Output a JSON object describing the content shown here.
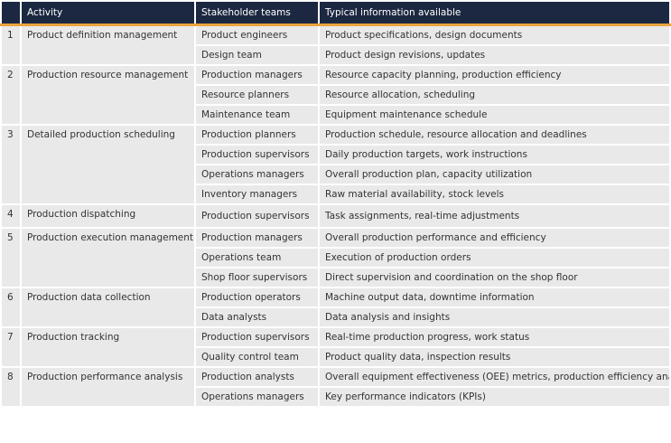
{
  "header": {
    "columns": [
      "Activity",
      "Stakeholder teams",
      "Typical information available"
    ]
  },
  "groups": [
    {
      "number": 1,
      "activity": "Product definition management",
      "rows": [
        {
          "team": "Product engineers",
          "info": "Product specifications, design documents"
        },
        {
          "team": "Design team",
          "info": "Product design revisions, updates"
        }
      ]
    },
    {
      "number": 2,
      "activity": "Production resource management",
      "rows": [
        {
          "team": "Production managers",
          "info": "Resource capacity planning, production efficiency"
        },
        {
          "team": "Resource planners",
          "info": "Resource allocation, scheduling"
        },
        {
          "team": "Maintenance team",
          "info": "Equipment maintenance schedule"
        }
      ]
    },
    {
      "number": 3,
      "activity": "Detailed production scheduling",
      "rows": [
        {
          "team": "Production planners",
          "info": "Production schedule, resource allocation and deadlines"
        },
        {
          "team": "Production supervisors",
          "info": "Daily production targets, work instructions"
        },
        {
          "team": "Operations managers",
          "info": "Overall production plan, capacity utilization"
        },
        {
          "team": "Inventory managers",
          "info": "Raw material availability, stock levels"
        }
      ]
    },
    {
      "number": 4,
      "activity": "Production dispatching",
      "rows": [
        {
          "team": "Production supervisors",
          "info": "Task assignments, real-time adjustments"
        }
      ]
    },
    {
      "number": 5,
      "activity": "Production execution management",
      "rows": [
        {
          "team": "Production managers",
          "info": "Overall production performance and efficiency"
        },
        {
          "team": "Operations team",
          "info": "Execution of production orders"
        },
        {
          "team": "Shop floor supervisors",
          "info": "Direct supervision and coordination on the shop floor"
        }
      ]
    },
    {
      "number": 6,
      "activity": "Production data collection",
      "rows": [
        {
          "team": "Production operators",
          "info": "Machine output data, downtime information"
        },
        {
          "team": "Data analysts",
          "info": "Data analysis and insights"
        }
      ]
    },
    {
      "number": 7,
      "activity": "Production tracking",
      "rows": [
        {
          "team": "Production supervisors",
          "info": "Real-time production progress, work status"
        },
        {
          "team": "Quality control team",
          "info": "Product quality data, inspection results"
        }
      ]
    },
    {
      "number": 8,
      "activity": "Production performance analysis",
      "rows": [
        {
          "team": "Production analysts",
          "info": "Overall equipment effectiveness (OEE) metrics, production efficiency analysis"
        },
        {
          "team": "Operations managers",
          "info": "Key performance indicators (KPIs)"
        }
      ]
    }
  ]
}
